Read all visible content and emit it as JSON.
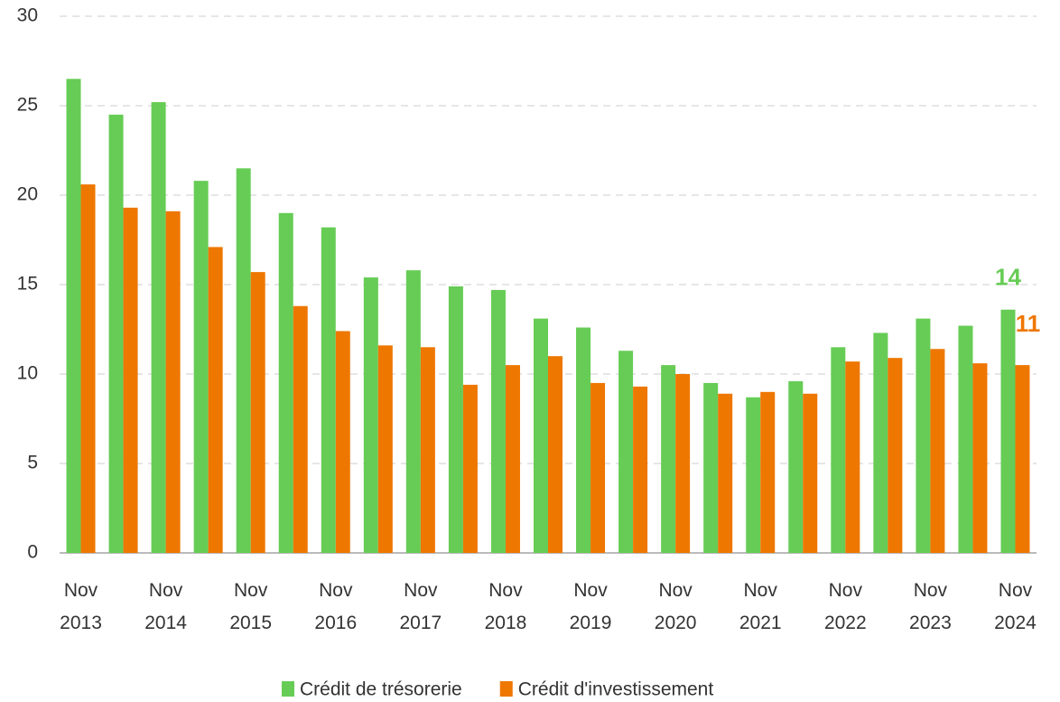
{
  "chart_data": {
    "type": "bar",
    "categories": [
      "Nov 2013",
      null,
      "Nov 2014",
      null,
      "Nov 2015",
      null,
      "Nov 2016",
      null,
      "Nov 2017",
      null,
      "Nov 2018",
      null,
      "Nov 2019",
      null,
      "Nov 2020",
      null,
      "Nov 2021",
      null,
      "Nov 2022",
      null,
      "Nov 2023",
      null,
      "Nov 2024"
    ],
    "series": [
      {
        "name": "Crédit de trésorerie",
        "color": "#66cc55",
        "end_label": "14",
        "values": [
          26.5,
          24.5,
          25.2,
          20.8,
          21.5,
          19.0,
          18.2,
          15.4,
          15.8,
          14.9,
          14.7,
          13.1,
          12.6,
          11.3,
          10.5,
          9.5,
          8.7,
          9.6,
          11.5,
          12.3,
          13.1,
          12.7,
          13.6
        ]
      },
      {
        "name": "Crédit d'investissement",
        "color": "#ee7700",
        "end_label": "11",
        "values": [
          20.6,
          19.3,
          19.1,
          17.1,
          15.7,
          13.8,
          12.4,
          11.6,
          11.5,
          9.4,
          10.5,
          11.0,
          9.5,
          9.3,
          10.0,
          8.9,
          9.0,
          8.9,
          10.7,
          10.9,
          11.4,
          10.6,
          10.5
        ]
      }
    ],
    "ylim": [
      0,
      30
    ],
    "yticks": [
      0,
      5,
      10,
      15,
      20,
      25,
      30
    ],
    "grid": true
  }
}
